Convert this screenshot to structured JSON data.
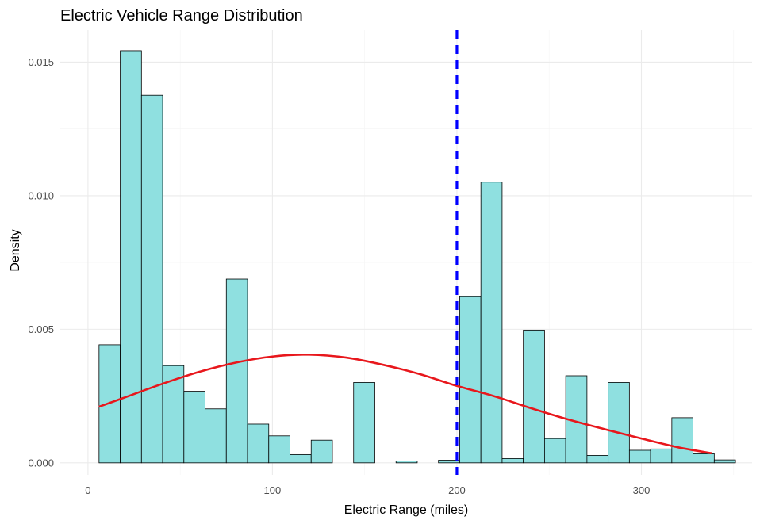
{
  "chart_data": {
    "type": "bar",
    "subtype": "histogram with density curve and vertical reference line",
    "title": "Electric Vehicle Range Distribution",
    "xlabel": "Electric Range (miles)",
    "ylabel": "Density",
    "xlim": [
      -15,
      360
    ],
    "ylim": [
      -0.00045,
      0.0162
    ],
    "x_ticks": [
      0,
      100,
      200,
      300
    ],
    "x_tick_labels": [
      "0",
      "100",
      "200",
      "300"
    ],
    "y_ticks": [
      0,
      0.005,
      0.01,
      0.015
    ],
    "y_tick_labels": [
      "0.000",
      "0.005",
      "0.010",
      "0.015"
    ],
    "grid": true,
    "bin_width": 11.5,
    "bins": [
      {
        "x0": 6.0,
        "x1": 17.5,
        "density": 0.00442
      },
      {
        "x0": 17.5,
        "x1": 29.0,
        "density": 0.01543
      },
      {
        "x0": 29.0,
        "x1": 40.5,
        "density": 0.01376
      },
      {
        "x0": 40.5,
        "x1": 52.0,
        "density": 0.00364
      },
      {
        "x0": 52.0,
        "x1": 63.5,
        "density": 0.00268
      },
      {
        "x0": 63.5,
        "x1": 75.0,
        "density": 0.00202
      },
      {
        "x0": 75.0,
        "x1": 86.5,
        "density": 0.00688
      },
      {
        "x0": 86.5,
        "x1": 98.0,
        "density": 0.00145
      },
      {
        "x0": 98.0,
        "x1": 109.5,
        "density": 0.00101
      },
      {
        "x0": 109.5,
        "x1": 121.0,
        "density": 0.00031
      },
      {
        "x0": 121.0,
        "x1": 132.5,
        "density": 0.00085
      },
      {
        "x0": 132.5,
        "x1": 144.0,
        "density": 0.0
      },
      {
        "x0": 144.0,
        "x1": 155.5,
        "density": 0.00301
      },
      {
        "x0": 155.5,
        "x1": 167.0,
        "density": 0.0
      },
      {
        "x0": 167.0,
        "x1": 178.5,
        "density": 7e-05
      },
      {
        "x0": 178.5,
        "x1": 190.0,
        "density": 0.0
      },
      {
        "x0": 190.0,
        "x1": 201.5,
        "density": 0.0001
      },
      {
        "x0": 201.5,
        "x1": 213.0,
        "density": 0.00622
      },
      {
        "x0": 213.0,
        "x1": 224.5,
        "density": 0.01051
      },
      {
        "x0": 224.5,
        "x1": 236.0,
        "density": 0.00016
      },
      {
        "x0": 236.0,
        "x1": 247.5,
        "density": 0.00497
      },
      {
        "x0": 247.5,
        "x1": 259.0,
        "density": 0.00091
      },
      {
        "x0": 259.0,
        "x1": 270.5,
        "density": 0.00326
      },
      {
        "x0": 270.5,
        "x1": 282.0,
        "density": 0.00028
      },
      {
        "x0": 282.0,
        "x1": 293.5,
        "density": 0.00301
      },
      {
        "x0": 293.5,
        "x1": 305.0,
        "density": 0.00047
      },
      {
        "x0": 305.0,
        "x1": 316.5,
        "density": 0.00052
      },
      {
        "x0": 316.5,
        "x1": 328.0,
        "density": 0.00169
      },
      {
        "x0": 328.0,
        "x1": 339.5,
        "density": 0.00034
      },
      {
        "x0": 339.5,
        "x1": 351.0,
        "density": 0.00011
      }
    ],
    "density_curve": {
      "x": [
        6,
        20,
        40,
        60,
        80,
        100,
        120,
        140,
        160,
        180,
        200,
        220,
        240,
        260,
        280,
        300,
        320,
        338
      ],
      "y": [
        0.0021,
        0.00245,
        0.00295,
        0.0034,
        0.00375,
        0.00398,
        0.00405,
        0.00394,
        0.00367,
        0.00332,
        0.00288,
        0.0025,
        0.00205,
        0.00163,
        0.00126,
        0.00091,
        0.00058,
        0.00036
      ]
    },
    "reference_line": {
      "x": 200,
      "style": "dashed"
    },
    "colors": {
      "bar_fill": "#8fe0e0",
      "bar_outline": "#000000",
      "curve": "#e8171c",
      "reference_line": "#0000ff",
      "grid": "#ebebeb"
    }
  }
}
